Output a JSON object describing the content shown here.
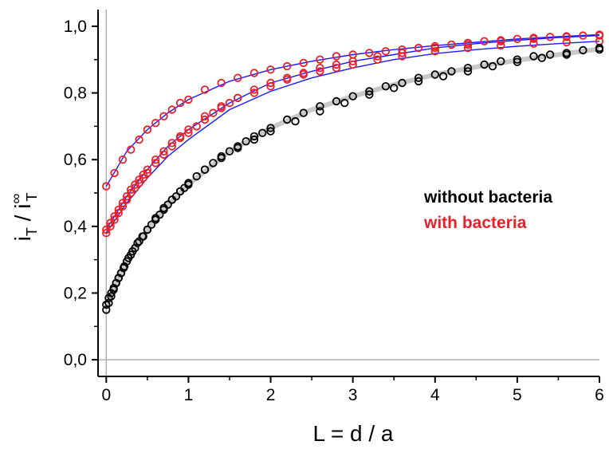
{
  "chart_data": {
    "type": "scatter",
    "xlabel": "L = d / a",
    "ylabel": {
      "base": "i",
      "sub1": "T",
      "sep": " / ",
      "base2": "i",
      "sub2": "T",
      "sup2": "∞"
    },
    "xlim": [
      -0.1,
      6
    ],
    "ylim": [
      -0.05,
      1.05
    ],
    "xticks": [
      0,
      1,
      2,
      3,
      4,
      5,
      6
    ],
    "xtick_labels": [
      "0",
      "1",
      "2",
      "3",
      "4",
      "5",
      "6"
    ],
    "yticks": [
      0.0,
      0.2,
      0.4,
      0.6,
      0.8,
      1.0
    ],
    "ytick_labels": [
      "0,0",
      "0,2",
      "0,4",
      "0,6",
      "0,8",
      "1,0"
    ],
    "legend": [
      {
        "label": "without bacteria",
        "color": "#000000"
      },
      {
        "label": "with bacteria",
        "color": "#e8202a"
      }
    ],
    "legend_placement": "center-right",
    "colors": {
      "without": "#000000",
      "with": "#e8202a",
      "fit": "#1a1aff",
      "fit_without": "#c8c8c8",
      "zero_line": "#b0b0b0"
    },
    "series": [
      {
        "group": "with",
        "x": [
          0.0,
          0.1,
          0.2,
          0.3,
          0.4,
          0.5,
          0.6,
          0.7,
          0.8,
          0.9,
          1.0,
          1.2,
          1.4,
          1.6,
          1.8,
          2.0,
          2.2,
          2.4,
          2.6,
          2.8,
          3.0,
          3.2,
          3.4,
          3.6,
          3.8,
          4.0,
          4.2,
          4.4,
          4.6,
          4.8,
          5.0,
          5.2,
          5.4,
          5.6,
          5.8,
          6.0
        ],
        "y": [
          0.52,
          0.56,
          0.6,
          0.63,
          0.66,
          0.69,
          0.71,
          0.73,
          0.75,
          0.77,
          0.78,
          0.81,
          0.83,
          0.845,
          0.86,
          0.87,
          0.88,
          0.89,
          0.9,
          0.91,
          0.915,
          0.92,
          0.925,
          0.93,
          0.935,
          0.94,
          0.945,
          0.95,
          0.955,
          0.958,
          0.962,
          0.965,
          0.968,
          0.97,
          0.972,
          0.975
        ]
      },
      {
        "group": "with",
        "x": [
          0.0,
          0.05,
          0.1,
          0.15,
          0.2,
          0.25,
          0.3,
          0.35,
          0.4,
          0.45,
          0.5,
          0.6,
          0.7,
          0.8,
          0.9,
          1.0,
          1.2,
          1.4,
          1.6,
          1.8,
          2.0,
          2.2,
          2.4,
          2.6,
          2.8,
          3.0,
          3.3,
          3.6,
          4.0,
          4.4,
          4.8,
          5.2,
          5.6,
          6.0
        ],
        "y": [
          0.39,
          0.41,
          0.43,
          0.45,
          0.47,
          0.49,
          0.51,
          0.525,
          0.54,
          0.555,
          0.57,
          0.6,
          0.625,
          0.65,
          0.67,
          0.69,
          0.73,
          0.76,
          0.785,
          0.81,
          0.83,
          0.845,
          0.86,
          0.875,
          0.885,
          0.895,
          0.91,
          0.92,
          0.935,
          0.945,
          0.955,
          0.962,
          0.968,
          0.972
        ]
      },
      {
        "group": "with",
        "x": [
          0.0,
          0.05,
          0.1,
          0.15,
          0.2,
          0.25,
          0.3,
          0.35,
          0.4,
          0.45,
          0.5,
          0.6,
          0.7,
          0.8,
          0.9,
          1.0,
          1.1,
          1.2,
          1.3,
          1.4,
          1.5,
          1.6,
          1.8,
          2.0,
          2.2,
          2.4,
          2.6,
          2.8,
          3.0,
          3.3,
          3.6,
          4.0,
          4.4,
          4.8,
          5.2,
          5.6,
          6.0
        ],
        "y": [
          0.38,
          0.4,
          0.42,
          0.44,
          0.46,
          0.48,
          0.5,
          0.515,
          0.53,
          0.545,
          0.56,
          0.59,
          0.615,
          0.64,
          0.665,
          0.68,
          0.7,
          0.72,
          0.74,
          0.755,
          0.77,
          0.785,
          0.8,
          0.82,
          0.84,
          0.855,
          0.865,
          0.875,
          0.885,
          0.9,
          0.91,
          0.925,
          0.935,
          0.942,
          0.948,
          0.952,
          0.955
        ]
      },
      {
        "group": "without",
        "x": [
          0.0,
          0.03,
          0.06,
          0.09,
          0.12,
          0.15,
          0.18,
          0.21,
          0.25,
          0.3,
          0.35,
          0.4,
          0.45,
          0.5,
          0.55,
          0.6,
          0.65,
          0.7,
          0.75,
          0.8,
          0.85,
          0.9,
          0.95,
          1.0,
          1.1,
          1.2,
          1.3,
          1.4,
          1.5,
          1.6,
          1.7,
          1.8,
          1.9,
          2.0,
          2.2,
          2.4,
          2.6,
          2.8,
          3.0,
          3.2,
          3.4,
          3.6,
          3.8,
          4.0,
          4.2,
          4.4,
          4.6,
          4.8,
          5.0,
          5.2,
          5.4,
          5.6,
          5.8,
          6.0
        ],
        "y": [
          0.15,
          0.17,
          0.19,
          0.21,
          0.23,
          0.245,
          0.26,
          0.275,
          0.295,
          0.315,
          0.335,
          0.355,
          0.37,
          0.39,
          0.405,
          0.42,
          0.435,
          0.45,
          0.465,
          0.48,
          0.49,
          0.505,
          0.515,
          0.525,
          0.55,
          0.57,
          0.59,
          0.61,
          0.625,
          0.64,
          0.655,
          0.67,
          0.68,
          0.695,
          0.72,
          0.74,
          0.76,
          0.775,
          0.79,
          0.805,
          0.82,
          0.83,
          0.845,
          0.855,
          0.865,
          0.875,
          0.885,
          0.895,
          0.9,
          0.91,
          0.915,
          0.92,
          0.928,
          0.935
        ]
      },
      {
        "group": "without",
        "x": [
          0.0,
          0.03,
          0.06,
          0.09,
          0.12,
          0.15,
          0.18,
          0.22,
          0.27,
          0.32,
          0.38,
          0.44,
          0.5,
          0.6,
          0.7,
          0.8,
          0.9,
          1.0,
          1.2,
          1.4,
          1.6,
          1.8,
          2.0,
          2.3,
          2.6,
          2.9,
          3.2,
          3.5,
          3.8,
          4.1,
          4.4,
          4.7,
          5.0,
          5.3,
          5.6,
          6.0
        ],
        "y": [
          0.165,
          0.185,
          0.2,
          0.215,
          0.23,
          0.245,
          0.26,
          0.28,
          0.305,
          0.325,
          0.35,
          0.37,
          0.39,
          0.425,
          0.455,
          0.48,
          0.505,
          0.53,
          0.57,
          0.605,
          0.635,
          0.66,
          0.685,
          0.715,
          0.745,
          0.77,
          0.795,
          0.815,
          0.835,
          0.85,
          0.865,
          0.88,
          0.893,
          0.905,
          0.915,
          0.93
        ]
      }
    ],
    "fit_curves": [
      {
        "group": "with",
        "color": "#1a1aff",
        "x": [
          0.0,
          0.25,
          0.5,
          0.75,
          1.0,
          1.5,
          2.0,
          2.5,
          3.0,
          3.5,
          4.0,
          4.5,
          5.0,
          5.5,
          6.0
        ],
        "y": [
          0.52,
          0.625,
          0.69,
          0.74,
          0.78,
          0.835,
          0.87,
          0.895,
          0.915,
          0.93,
          0.942,
          0.952,
          0.962,
          0.969,
          0.975
        ]
      },
      {
        "group": "with",
        "color": "#1a1aff",
        "x": [
          0.0,
          0.25,
          0.5,
          0.75,
          1.0,
          1.5,
          2.0,
          2.5,
          3.0,
          3.5,
          4.0,
          4.5,
          5.0,
          5.5,
          6.0
        ],
        "y": [
          0.39,
          0.49,
          0.57,
          0.64,
          0.69,
          0.77,
          0.83,
          0.865,
          0.895,
          0.915,
          0.935,
          0.948,
          0.958,
          0.966,
          0.972
        ]
      },
      {
        "group": "with",
        "color": "#1a1aff",
        "x": [
          0.0,
          0.25,
          0.5,
          0.75,
          1.0,
          1.5,
          2.0,
          2.5,
          3.0,
          3.5,
          4.0,
          4.5,
          5.0,
          5.5,
          6.0
        ],
        "y": [
          0.38,
          0.47,
          0.545,
          0.61,
          0.66,
          0.75,
          0.805,
          0.845,
          0.875,
          0.9,
          0.918,
          0.93,
          0.94,
          0.948,
          0.955
        ]
      },
      {
        "group": "without",
        "color": "#c8c8c8",
        "x": [
          0.0,
          0.25,
          0.5,
          0.75,
          1.0,
          1.5,
          2.0,
          2.5,
          3.0,
          3.5,
          4.0,
          4.5,
          5.0,
          5.5,
          6.0
        ],
        "y": [
          0.16,
          0.3,
          0.39,
          0.465,
          0.525,
          0.625,
          0.695,
          0.75,
          0.79,
          0.825,
          0.855,
          0.878,
          0.898,
          0.915,
          0.932
        ]
      }
    ]
  }
}
